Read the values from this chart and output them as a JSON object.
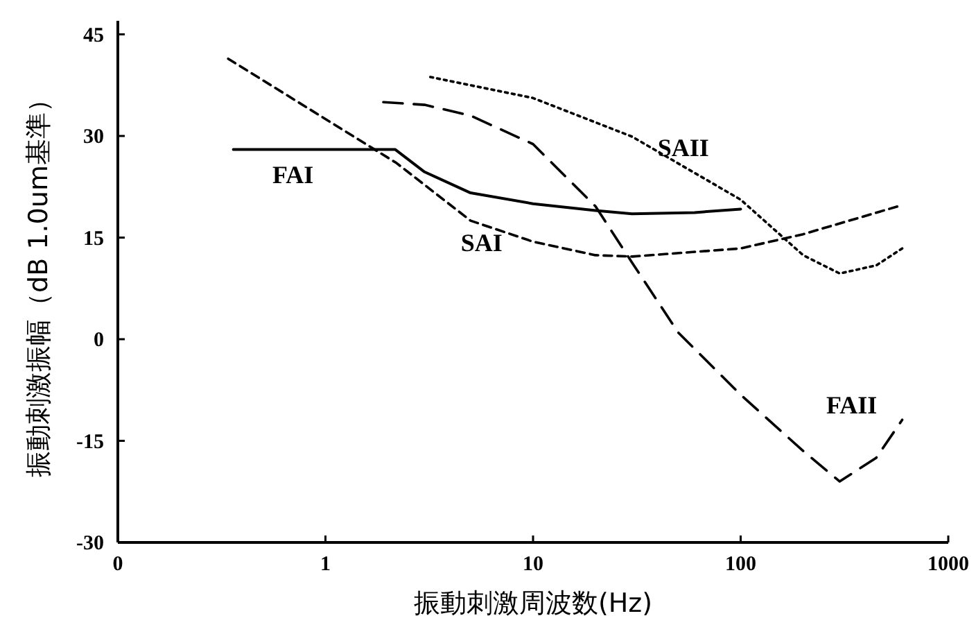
{
  "chart_data": {
    "type": "line",
    "xlabel": "振動刺激周波数(Hz)",
    "ylabel": "振動刺激振幅（dB 1.0um基準）",
    "log": "x",
    "xlim": [
      0.1,
      1000
    ],
    "xticks": [
      {
        "value": 0.1,
        "label": "0"
      },
      1,
      10,
      100,
      1000
    ],
    "ylim": [
      -30,
      47
    ],
    "yticks": [
      -30,
      -15,
      0,
      15,
      30,
      45
    ],
    "grid": false,
    "legend": false,
    "series": [
      {
        "name": "FAI",
        "color": "#000000",
        "line_style": "solid",
        "x": [
          0.36,
          2.17,
          3,
          5,
          10,
          20,
          30,
          60,
          100
        ],
        "values": [
          28,
          28,
          24.7,
          21.6,
          20,
          19,
          18.5,
          18.7,
          19.2
        ]
      },
      {
        "name": "SAI",
        "color": "#000000",
        "line_style": "dashed",
        "x": [
          0.34,
          2.2,
          5,
          10,
          20,
          30,
          100,
          200,
          600
        ],
        "values": [
          41.4,
          26,
          17.5,
          14.4,
          12.4,
          12.2,
          13.4,
          15.5,
          19.8
        ]
      },
      {
        "name": "SAII",
        "color": "#000000",
        "line_style": "dotted",
        "x": [
          3.2,
          10,
          30,
          100,
          200,
          300,
          450,
          600
        ],
        "values": [
          38.7,
          35.6,
          29.9,
          20.6,
          12.4,
          9.7,
          10.9,
          13.4
        ]
      },
      {
        "name": "FAII",
        "color": "#000000",
        "line_style": "longdash",
        "x": [
          1.9,
          3,
          5,
          10,
          20,
          30,
          50,
          100,
          200,
          300,
          450,
          600
        ],
        "values": [
          35,
          34.6,
          33,
          28.8,
          19.6,
          11.3,
          1,
          -8.2,
          -16.5,
          -21,
          -17.5,
          -11.9
        ]
      }
    ]
  }
}
